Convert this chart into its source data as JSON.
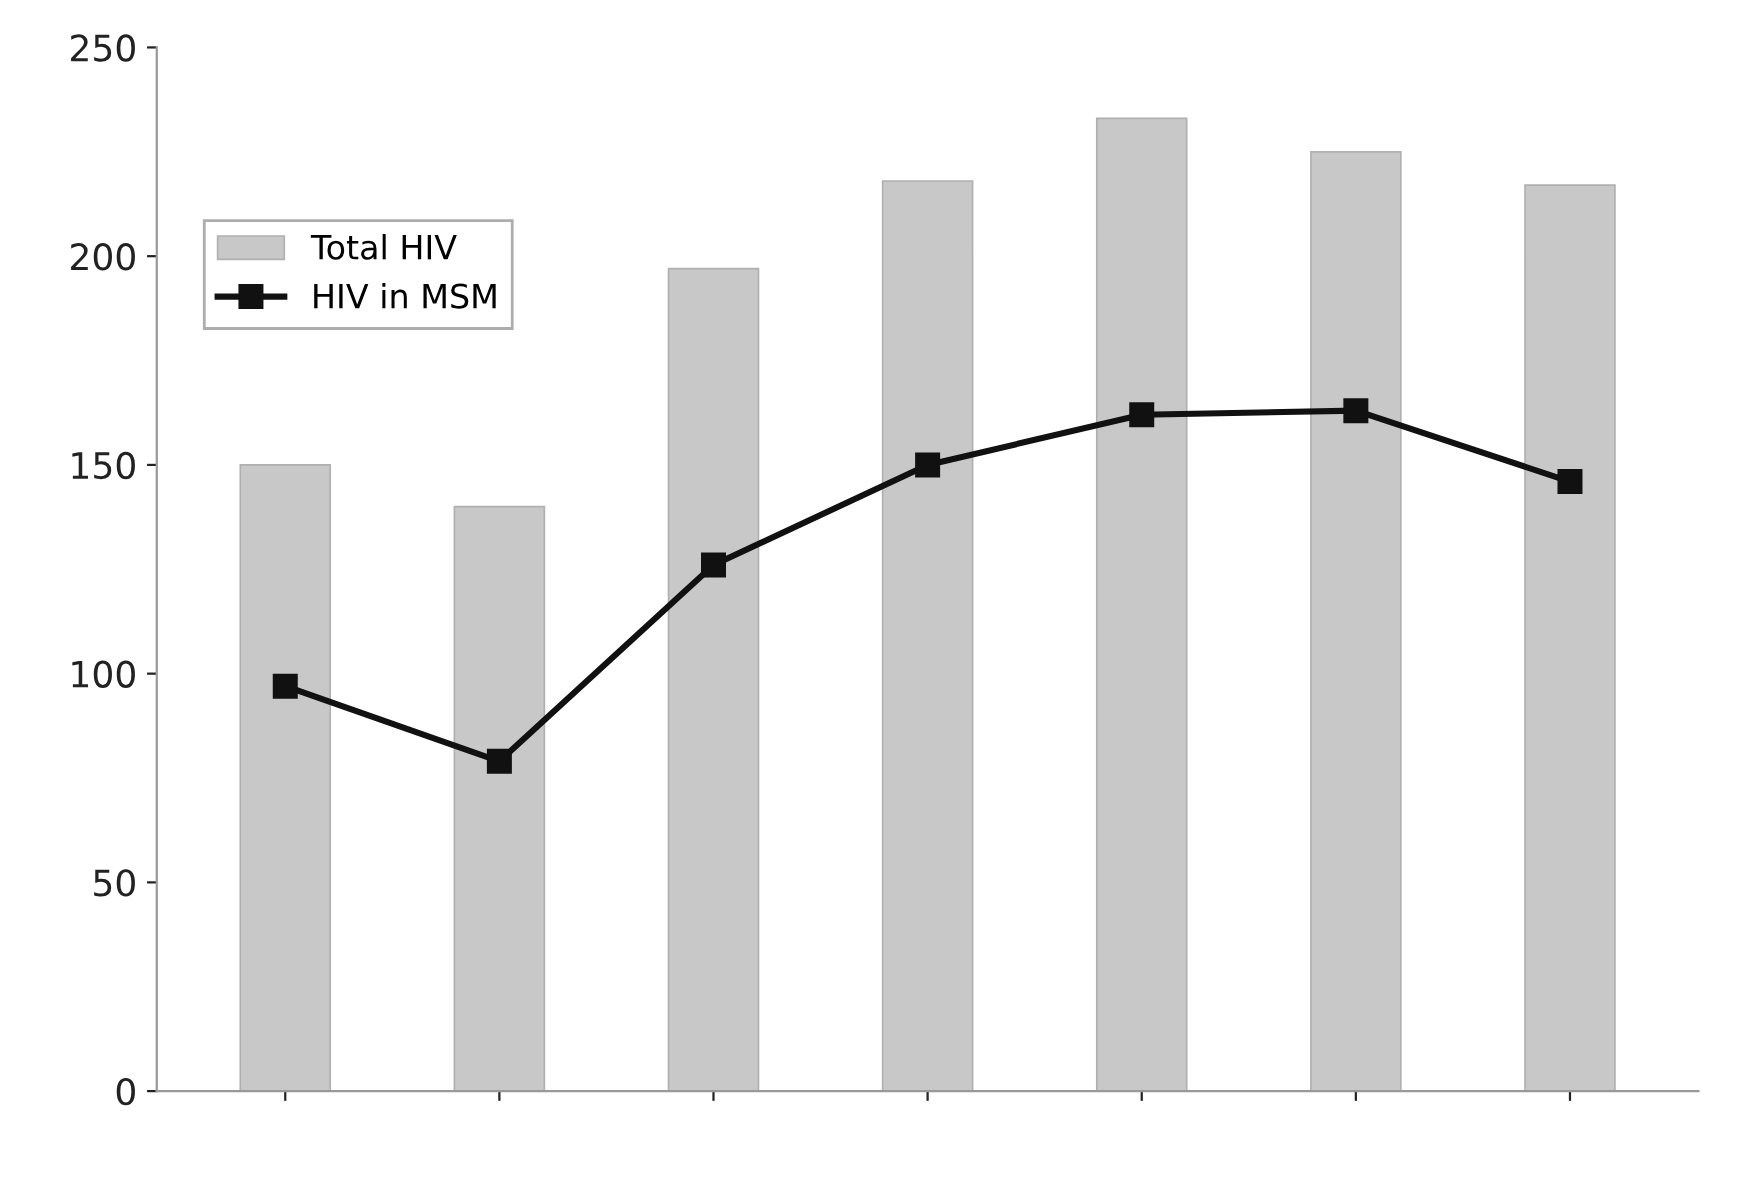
{
  "chart_data": {
    "type": "bar",
    "categories": [
      null,
      null,
      null,
      null,
      null,
      null,
      null
    ],
    "series": [
      {
        "name": "Total HIV",
        "color": "#c8c8c8",
        "values": [
          150,
          140,
          197,
          218,
          233,
          225,
          217
        ]
      },
      {
        "name": "HIV in MSM",
        "type": "line",
        "color": "#111111",
        "marker": "square",
        "values": [
          97,
          79,
          126,
          150,
          162,
          163,
          146
        ]
      }
    ],
    "ylim": [
      0,
      250
    ],
    "yticks": [
      0,
      50,
      100,
      150,
      200,
      250
    ],
    "grid": false,
    "legend": "top left"
  }
}
